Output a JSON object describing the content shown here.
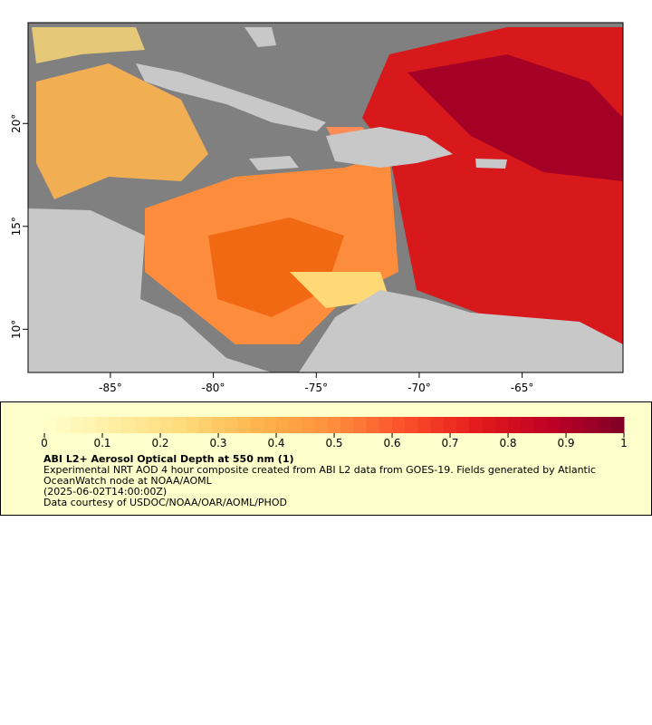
{
  "map": {
    "xlim": [
      -89,
      -60.1
    ],
    "ylim": [
      7.9,
      24.9
    ],
    "xticks": [
      {
        "value": -85,
        "label": "-85°"
      },
      {
        "value": -80,
        "label": "-80°"
      },
      {
        "value": -75,
        "label": "-75°"
      },
      {
        "value": -70,
        "label": "-70°"
      },
      {
        "value": -65,
        "label": "-65°"
      }
    ],
    "yticks": [
      {
        "value": 10,
        "label": "10°"
      },
      {
        "value": 15,
        "label": "15°"
      },
      {
        "value": 20,
        "label": "20°"
      }
    ]
  },
  "colorbar": {
    "lim": [
      0,
      1
    ],
    "ticks": [
      0,
      0.1,
      0.2,
      0.3,
      0.4,
      0.5,
      0.6,
      0.7,
      0.8,
      0.9,
      1
    ],
    "colors": [
      "#ffffcc",
      "#ffeda0",
      "#fed976",
      "#feb24c",
      "#fd8d3c",
      "#fc4e2a",
      "#e31a1c",
      "#bd0026",
      "#800026"
    ]
  },
  "legend": {
    "title": "ABI L2+ Aerosol Optical Depth at 550 nm (1)",
    "description": "Experimental NRT AOD 4 hour composite created from ABI L2 data from GOES-19. Fields generated by Atlantic OceanWatch node at NOAA/AOML",
    "time": "(2025-06-02T14:00:00Z)",
    "credit": "Data courtesy of USDOC/NOAA/OAR/AOML/PHOD"
  }
}
